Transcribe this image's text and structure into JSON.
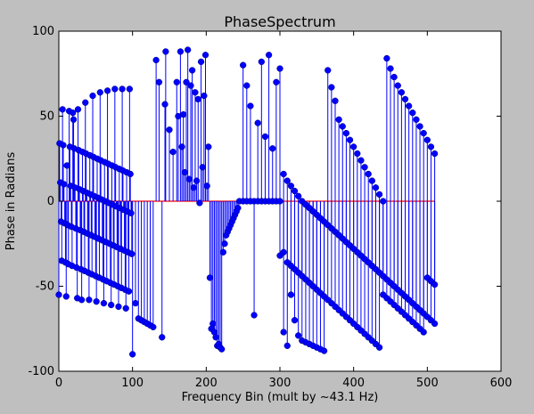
{
  "chart_data": {
    "type": "stem",
    "title": "PhaseSpectrum",
    "xlabel": "Frequency Bin (mult by ~43.1 Hz)",
    "ylabel": "Phase in Radians",
    "xlim": [
      0,
      600
    ],
    "ylim": [
      -100,
      100
    ],
    "xticks": [
      0,
      100,
      200,
      300,
      400,
      500,
      600
    ],
    "yticks": [
      -100,
      -50,
      0,
      50,
      100
    ],
    "grid": false,
    "legend": "none",
    "colors": {
      "marker": "#0000ff",
      "stem": "#0000ff",
      "baseline": "#ff0000",
      "plot_background": "#ffffff",
      "figure_background": "#bfbfbf"
    },
    "series": [
      {
        "x": [
          0,
          1,
          2,
          3,
          4,
          5,
          6,
          7,
          8,
          9,
          10,
          11,
          12,
          13,
          14,
          15,
          16,
          17,
          18,
          19,
          20,
          21,
          22,
          23,
          24,
          25,
          26,
          27,
          28,
          29,
          30,
          31,
          32,
          33,
          34,
          35,
          36,
          37,
          38,
          39,
          40,
          41,
          42,
          43,
          44,
          45,
          46,
          47,
          48,
          49,
          50,
          51,
          52,
          53,
          54,
          55,
          56,
          57,
          58,
          59,
          60,
          61,
          62,
          63,
          64,
          65,
          66,
          67,
          68,
          69,
          70,
          71,
          72,
          73,
          74,
          75,
          76,
          77,
          78,
          79,
          80,
          81,
          82,
          83,
          84,
          85,
          86,
          87,
          88,
          89,
          90,
          91,
          92,
          93,
          94,
          95,
          96,
          97,
          98,
          99
        ],
        "y": [
          -55,
          34,
          11,
          -12,
          -35,
          54,
          33,
          10,
          -13,
          -36,
          -56,
          21,
          -14,
          -37,
          53,
          32,
          9,
          -15,
          -38,
          52,
          48,
          31,
          8,
          -16,
          -39,
          -57,
          54,
          30,
          7,
          -17,
          -40,
          -58,
          29,
          6,
          -18,
          -41,
          58,
          28,
          5,
          -19,
          -42,
          -58,
          27,
          4,
          -20,
          -43,
          62,
          26,
          3,
          -21,
          -44,
          -59,
          25,
          2,
          -22,
          -45,
          64,
          24,
          1,
          -23,
          -46,
          -60,
          23,
          0,
          -24,
          -47,
          65,
          22,
          -1,
          -25,
          -48,
          -61,
          21,
          -2,
          -26,
          -49,
          66,
          20,
          -3,
          -27,
          -50,
          -62,
          19,
          -4,
          -28,
          -51,
          66,
          18,
          -5,
          -29,
          -52,
          -63,
          17,
          -6,
          -30,
          -53,
          66,
          16,
          -7,
          -31
        ]
      },
      {
        "x": [
          100,
          104,
          108,
          112,
          116,
          120,
          124,
          128,
          132,
          136,
          140,
          144
        ],
        "y": [
          -90,
          -60,
          -69,
          -70,
          -71,
          -72,
          -73,
          -74,
          83,
          70,
          -80,
          57
        ]
      },
      {
        "x": [
          145,
          150,
          155,
          160,
          162,
          165,
          167,
          169,
          171,
          173,
          175,
          177,
          179,
          181,
          183,
          185,
          187,
          189,
          191,
          193,
          195,
          197,
          199,
          201,
          203,
          205,
          207,
          209,
          211,
          213,
          215,
          217,
          219,
          221,
          223,
          225,
          227,
          229,
          231,
          233,
          235,
          237,
          239,
          241,
          243
        ],
        "y": [
          88,
          42,
          29,
          70,
          50,
          88,
          32,
          51,
          17,
          70,
          89,
          13,
          68,
          77,
          8,
          64,
          12,
          60,
          -1,
          82,
          20,
          62,
          86,
          9,
          32,
          -45,
          -75,
          -72,
          -77,
          -80,
          -85,
          -84,
          -86,
          -87,
          -30,
          -25,
          -20,
          -18,
          -16,
          -14,
          -12,
          -10,
          -8,
          -6,
          -4
        ]
      },
      {
        "x": [
          250,
          255,
          260,
          265,
          270,
          275,
          280,
          285,
          290,
          295,
          300,
          305,
          310,
          315,
          320,
          325,
          330,
          335,
          340,
          345,
          350,
          355,
          360,
          365,
          370,
          375
        ],
        "y": [
          80,
          68,
          56,
          -67,
          46,
          82,
          38,
          86,
          31,
          70,
          78,
          -77,
          -85,
          -55,
          -70,
          -79,
          -82,
          -83,
          -84,
          -85,
          -86,
          -87,
          -88,
          77,
          67,
          59
        ]
      },
      {
        "x": [
          245,
          250,
          255,
          260,
          265,
          270,
          275,
          280,
          285,
          290,
          295,
          300,
          305,
          310,
          315,
          320,
          325,
          330,
          335,
          340,
          345,
          350,
          355,
          360,
          365,
          370,
          375,
          380,
          385,
          390,
          395,
          400,
          405,
          410,
          415,
          420,
          425,
          430,
          435,
          440,
          445,
          450,
          455,
          460,
          465,
          470,
          475,
          480,
          485,
          490,
          495,
          500,
          505,
          510
        ],
        "y": [
          0,
          0,
          0,
          0,
          0,
          0,
          0,
          0,
          0,
          0,
          0,
          0,
          16,
          12,
          9,
          6,
          3,
          0,
          -2,
          -4,
          -6,
          -8,
          -10,
          -12,
          -14,
          -16,
          -18,
          -20,
          -22,
          -24,
          -26,
          -28,
          -30,
          -32,
          -34,
          -36,
          -38,
          -40,
          -42,
          -44,
          -46,
          -48,
          -50,
          -52,
          -54,
          -56,
          -58,
          -60,
          -62,
          -64,
          -66,
          -68,
          -70,
          -72
        ]
      },
      {
        "x": [
          300,
          305,
          310,
          315,
          320,
          325,
          330,
          335,
          340,
          345,
          350,
          355,
          360,
          365,
          370,
          375,
          380,
          385,
          390,
          395,
          400,
          405,
          410,
          415,
          420,
          425,
          430,
          435,
          440,
          445,
          450,
          455,
          460,
          465,
          470,
          475,
          480,
          485,
          490,
          495,
          500,
          505,
          510
        ],
        "y": [
          -32,
          -30,
          -36,
          -38,
          -40,
          -42,
          -44,
          -46,
          -48,
          -50,
          -52,
          -54,
          -56,
          -58,
          -60,
          -62,
          -64,
          -66,
          -68,
          -70,
          -72,
          -74,
          -76,
          -78,
          -80,
          -82,
          -84,
          -86,
          -55,
          -57,
          -59,
          -61,
          -63,
          -65,
          -67,
          -69,
          -71,
          -73,
          -75,
          -77,
          -45,
          -47,
          -49
        ]
      },
      {
        "x": [
          380,
          385,
          390,
          395,
          400,
          405,
          410,
          415,
          420,
          425,
          430,
          435,
          440,
          445,
          450,
          455,
          460,
          465,
          470,
          475,
          480,
          485,
          490,
          495,
          500,
          505,
          510
        ],
        "y": [
          48,
          44,
          40,
          36,
          32,
          28,
          24,
          20,
          16,
          12,
          8,
          4,
          0,
          84,
          78,
          73,
          68,
          64,
          60,
          56,
          52,
          48,
          44,
          40,
          36,
          32,
          28
        ]
      }
    ]
  }
}
